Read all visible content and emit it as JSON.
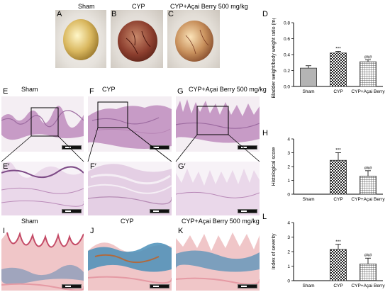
{
  "letters": {
    "A": "A",
    "B": "B",
    "C": "C",
    "D": "D",
    "E": "E",
    "F": "F",
    "G": "G",
    "H": "H",
    "E2": "E′",
    "F2": "F′",
    "G2": "G′",
    "I": "I",
    "J": "J",
    "K": "K",
    "L": "L"
  },
  "titles": {
    "sham": "Sham",
    "cyp": "CYP",
    "cyp_acai": "CYP+Açai Berry 500 mg/kg"
  },
  "colors": {
    "bar_sham": "#b4b4b4",
    "bar_stroke": "#333333",
    "he_stain": "#c79bc6",
    "blue_stain": "#4a8fb8",
    "pink_stain": "#e8b5b8"
  },
  "chart_data": [
    {
      "panel": "D",
      "type": "bar",
      "categories": [
        "Sham",
        "CYP",
        "CYP+Açai Berry"
      ],
      "values": [
        0.23,
        0.42,
        0.31
      ],
      "errors": [
        0.03,
        0.02,
        0.025
      ],
      "annotations": [
        "",
        "***",
        "###"
      ],
      "ylabel": "Bladder weight/body weight ratio (mg/g)",
      "ylim": [
        0,
        0.8
      ],
      "yticks": [
        "0.0",
        "0.2",
        "0.4",
        "0.6",
        "0.8"
      ]
    },
    {
      "panel": "H",
      "type": "bar",
      "categories": [
        "Sham",
        "CYP",
        "CYP+Açai Berry"
      ],
      "values": [
        0,
        2.45,
        1.3
      ],
      "errors": [
        0,
        0.55,
        0.4
      ],
      "annotations": [
        "",
        "***",
        "###"
      ],
      "ylabel": "Histological score",
      "ylim": [
        0,
        4
      ],
      "yticks": [
        "0",
        "1",
        "2",
        "3",
        "4"
      ]
    },
    {
      "panel": "L",
      "type": "bar",
      "categories": [
        "Sham",
        "CYP",
        "CYP+Açai Berry"
      ],
      "values": [
        0,
        2.15,
        1.15
      ],
      "errors": [
        0,
        0.35,
        0.4
      ],
      "annotations": [
        "",
        "***",
        "###"
      ],
      "ylabel": "Index of severity",
      "ylim": [
        0,
        4
      ],
      "yticks": [
        "0",
        "1",
        "2",
        "3",
        "4"
      ]
    }
  ]
}
